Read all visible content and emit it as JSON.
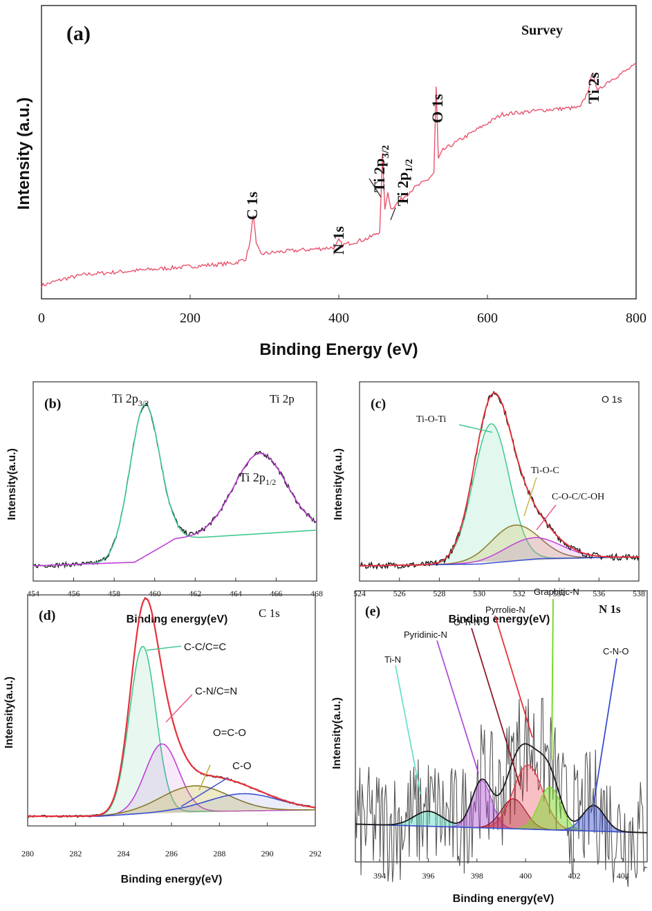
{
  "colors": {
    "survey": "#e8536d",
    "raw": "#1a1a1a",
    "envelope": "#e8303a",
    "green": "#3fc98f",
    "magenta": "#c03fd8",
    "olive": "#8a7a2a",
    "pink": "#e85a8a",
    "blue": "#3a4fd0",
    "yellowgreen": "#7ad82a",
    "cyan": "#6ae0c8",
    "purple": "#b04fd8",
    "darkred": "#8a1a2a"
  },
  "chart_data": [
    {
      "id": "a",
      "type": "line",
      "panel_label": "(a)",
      "title": "Survey",
      "xlabel": "Binding Energy (eV)",
      "ylabel": "Intensity (a.u.)",
      "xlim": [
        0,
        800
      ],
      "ylim": [
        0,
        1
      ],
      "xticks": [
        "0",
        "200",
        "400",
        "600",
        "800"
      ],
      "series": [
        {
          "values_x": [
            0,
            30,
            60,
            100,
            140,
            180,
            220,
            260,
            275,
            281,
            285,
            289,
            295,
            320,
            360,
            395,
            400,
            405,
            440,
            455,
            459,
            462,
            466,
            470,
            500,
            520,
            528,
            531,
            534,
            540,
            580,
            620,
            680,
            725,
            735,
            742,
            748,
            760,
            800
          ],
          "values_y": [
            0.02,
            0.05,
            0.07,
            0.08,
            0.09,
            0.1,
            0.11,
            0.12,
            0.14,
            0.22,
            0.34,
            0.2,
            0.16,
            0.17,
            0.18,
            0.19,
            0.22,
            0.2,
            0.23,
            0.26,
            0.6,
            0.35,
            0.44,
            0.36,
            0.45,
            0.49,
            0.52,
            0.9,
            0.58,
            0.62,
            0.7,
            0.78,
            0.8,
            0.81,
            0.88,
            0.97,
            0.88,
            0.92,
            1.0
          ]
        }
      ],
      "annotations": [
        {
          "text": "C 1s",
          "x": 285
        },
        {
          "text": "N 1s",
          "x": 400
        },
        {
          "text": "Ti 2p",
          "sub": "3/2",
          "x": 459
        },
        {
          "text": "Ti 2p",
          "sub": "1/2",
          "x": 465
        },
        {
          "text": "O 1s",
          "x": 531
        },
        {
          "text": "Ti 2s",
          "x": 742
        }
      ]
    },
    {
      "id": "b",
      "type": "line",
      "panel_label": "(b)",
      "title": "Ti 2p",
      "xlabel": "Binding energy(eV)",
      "ylabel": "Intensity(a.u.)",
      "xlim": [
        454,
        468
      ],
      "ylim": [
        0,
        1
      ],
      "xticks": [
        "454",
        "456",
        "458",
        "460",
        "462",
        "464",
        "466",
        "468"
      ],
      "series": [
        {
          "role": "raw",
          "peaks": [
            [
              459.5,
              0.85,
              0.75
            ],
            [
              465.2,
              0.45,
              1.3
            ]
          ],
          "background": [
            [
              454,
              0.0
            ],
            [
              459,
              0.02
            ],
            [
              461,
              0.15
            ],
            [
              468,
              0.2
            ]
          ]
        },
        {
          "role": "fit-green",
          "peaks": [
            [
              459.5,
              0.85,
              0.75
            ]
          ],
          "background": [
            [
              454,
              0.0
            ],
            [
              459,
              0.02
            ],
            [
              461,
              0.15
            ],
            [
              468,
              0.2
            ]
          ]
        },
        {
          "role": "fit-magenta",
          "peaks": [
            [
              465.2,
              0.45,
              1.3
            ]
          ],
          "background": [
            [
              454,
              0.0
            ],
            [
              459,
              0.02
            ],
            [
              461,
              0.15
            ],
            [
              468,
              0.2
            ]
          ]
        }
      ],
      "annotations": [
        {
          "text": "Ti 2p",
          "sub": "3/2"
        },
        {
          "text": "Ti 2p",
          "sub": "1/2"
        }
      ]
    },
    {
      "id": "c",
      "type": "line",
      "panel_label": "(c)",
      "title": "O 1s",
      "xlabel": "Binding energy(eV)",
      "ylabel": "Intensity(a.u.)",
      "xlim": [
        524,
        538
      ],
      "ylim": [
        0,
        1
      ],
      "xticks": [
        "524",
        "526",
        "528",
        "530",
        "532",
        "534",
        "536",
        "538"
      ],
      "series": [
        {
          "role": "raw",
          "peaks": [
            [
              530.6,
              0.78,
              0.9
            ],
            [
              531.8,
              0.2,
              1.2
            ],
            [
              532.7,
              0.12,
              1.4
            ]
          ]
        },
        {
          "role": "Ti-O-Ti",
          "peaks": [
            [
              530.6,
              0.78,
              0.9
            ]
          ]
        },
        {
          "role": "Ti-O-C",
          "peaks": [
            [
              531.8,
              0.2,
              1.2
            ]
          ]
        },
        {
          "role": "C-O-C/C-OH",
          "peaks": [
            [
              532.7,
              0.12,
              1.4
            ]
          ]
        }
      ],
      "annotations": [
        {
          "text": "Ti-O-Ti"
        },
        {
          "text": "Ti-O-C"
        },
        {
          "text": "C-O-C/C-OH"
        }
      ]
    },
    {
      "id": "d",
      "type": "line",
      "panel_label": "(d)",
      "title": "C 1s",
      "xlabel": "Binding energy(eV)",
      "ylabel": "Intensity(a.u.)",
      "xlim": [
        280,
        292
      ],
      "ylim": [
        0,
        1
      ],
      "xticks": [
        "280",
        "282",
        "284",
        "286",
        "288",
        "290",
        "292"
      ],
      "series": [
        {
          "role": "C-C/C=C",
          "peaks": [
            [
              284.8,
              0.78,
              0.55
            ]
          ]
        },
        {
          "role": "C-N/C=N",
          "peaks": [
            [
              285.6,
              0.32,
              0.7
            ]
          ]
        },
        {
          "role": "O=C-O",
          "peaks": [
            [
              287.0,
              0.12,
              1.4
            ]
          ]
        },
        {
          "role": "C-O",
          "peaks": [
            [
              289.0,
              0.08,
              1.5
            ]
          ]
        }
      ],
      "annotations": [
        {
          "text": "C-C/C=C"
        },
        {
          "text": "C-N/C=N"
        },
        {
          "text": "O=C-O"
        },
        {
          "text": "C-O"
        }
      ]
    },
    {
      "id": "e",
      "type": "line",
      "panel_label": "(e)",
      "title": "N 1s",
      "xlabel": "Binding energy(eV)",
      "ylabel": "Intensity(a.u.)",
      "xlim": [
        393,
        405
      ],
      "ylim": [
        0,
        1
      ],
      "xticks": [
        "394",
        "396",
        "398",
        "400",
        "402",
        "404"
      ],
      "series": [
        {
          "role": "Ti-N",
          "peaks": [
            [
              396.0,
              0.07,
              0.6
            ]
          ]
        },
        {
          "role": "Pyridinic-N",
          "peaks": [
            [
              398.2,
              0.22,
              0.4
            ]
          ]
        },
        {
          "role": "O-Ti-N",
          "peaks": [
            [
              399.5,
              0.14,
              0.5
            ]
          ]
        },
        {
          "role": "Pyrrolie-N",
          "peaks": [
            [
              400.1,
              0.3,
              0.6
            ]
          ]
        },
        {
          "role": "Graphitic-N",
          "peaks": [
            [
              401.0,
              0.2,
              0.45
            ]
          ]
        },
        {
          "role": "C-N-O",
          "peaks": [
            [
              402.8,
              0.12,
              0.45
            ]
          ]
        }
      ],
      "annotations": [
        {
          "text": "Ti-N"
        },
        {
          "text": "Pyridinic-N"
        },
        {
          "text": "O-Ti-N"
        },
        {
          "text": "Pyrrolie-N"
        },
        {
          "text": "Graphitic-N"
        },
        {
          "text": "C-N-O"
        }
      ]
    }
  ]
}
